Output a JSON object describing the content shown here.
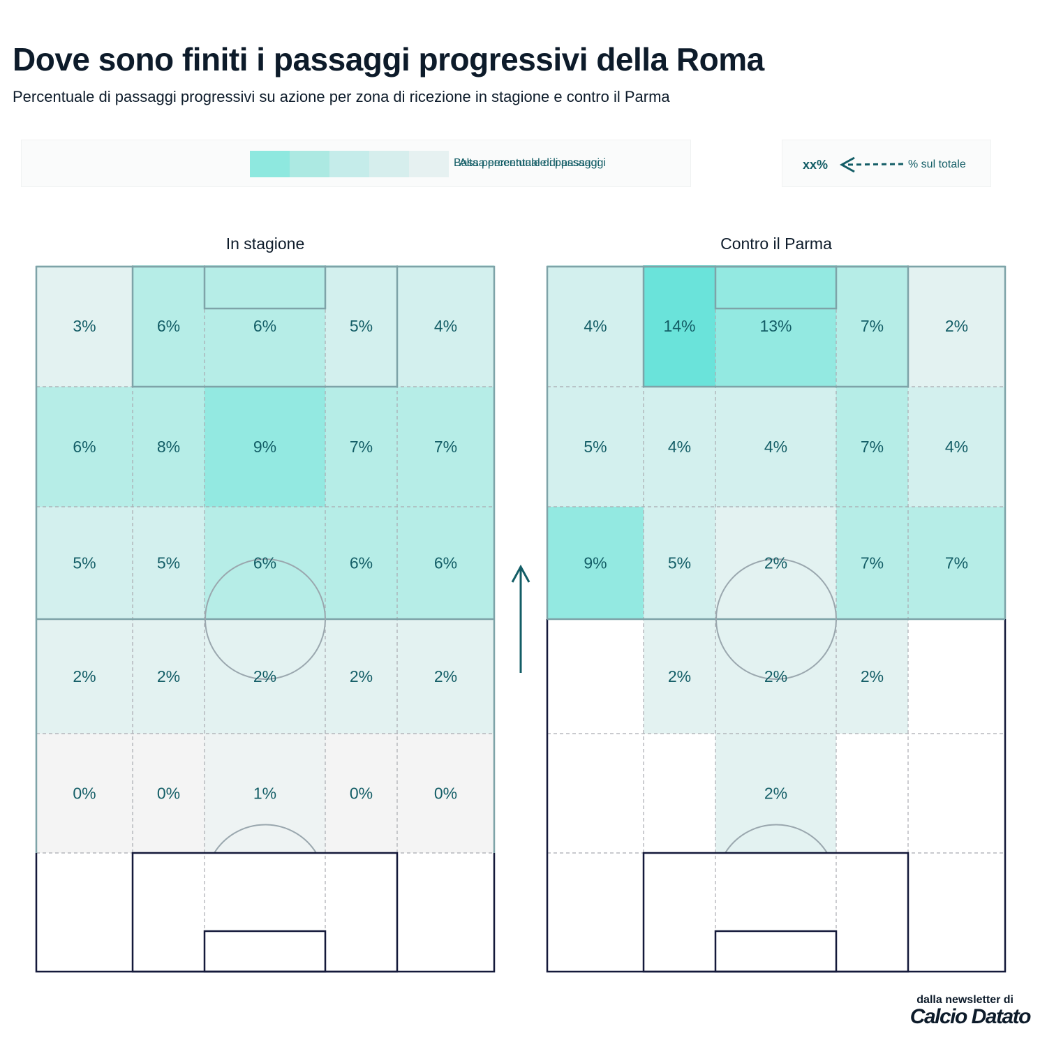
{
  "title": "Dove sono finiti i passaggi progressivi della Roma",
  "subtitle": "Percentuale di passaggi progressivi su azione per zona di ricezione in stagione e contro il Parma",
  "legend": {
    "high_label": "Alta percentuale di passaggi",
    "low_label": "Bassa percentuale di passaggi",
    "swatch_colors": [
      "#8ee8df",
      "#ace9e2",
      "#c5ecea",
      "#d6eeed",
      "#e6f1f1"
    ],
    "value_marker": "xx%",
    "total_label": "% sul totale",
    "arrow_color": "#135d66"
  },
  "colors": {
    "text": "#135d66",
    "pitch_line_active": "#7ea3a8",
    "pitch_line_inactive": "#14193a",
    "grid_dash": "#a9aab0",
    "circle": "#9aa7ae"
  },
  "chart_data": [
    {
      "type": "heatmap",
      "title": "In stagione",
      "columns": 5,
      "rows": 5,
      "values": [
        [
          3,
          6,
          6,
          5,
          4
        ],
        [
          6,
          8,
          9,
          7,
          7
        ],
        [
          5,
          5,
          6,
          6,
          6
        ],
        [
          2,
          2,
          2,
          2,
          2
        ],
        [
          0,
          0,
          1,
          0,
          0
        ]
      ],
      "unit": "%"
    },
    {
      "type": "heatmap",
      "title": "Contro il Parma",
      "columns": 5,
      "rows": 5,
      "values": [
        [
          4,
          14,
          13,
          7,
          2
        ],
        [
          5,
          4,
          4,
          7,
          4
        ],
        [
          9,
          5,
          2,
          7,
          7
        ],
        [
          null,
          2,
          2,
          2,
          null
        ],
        [
          null,
          null,
          2,
          null,
          null
        ]
      ],
      "unit": "%"
    }
  ],
  "footer": {
    "line1": "dalla newsletter di",
    "brand": "Calcio Datato"
  }
}
